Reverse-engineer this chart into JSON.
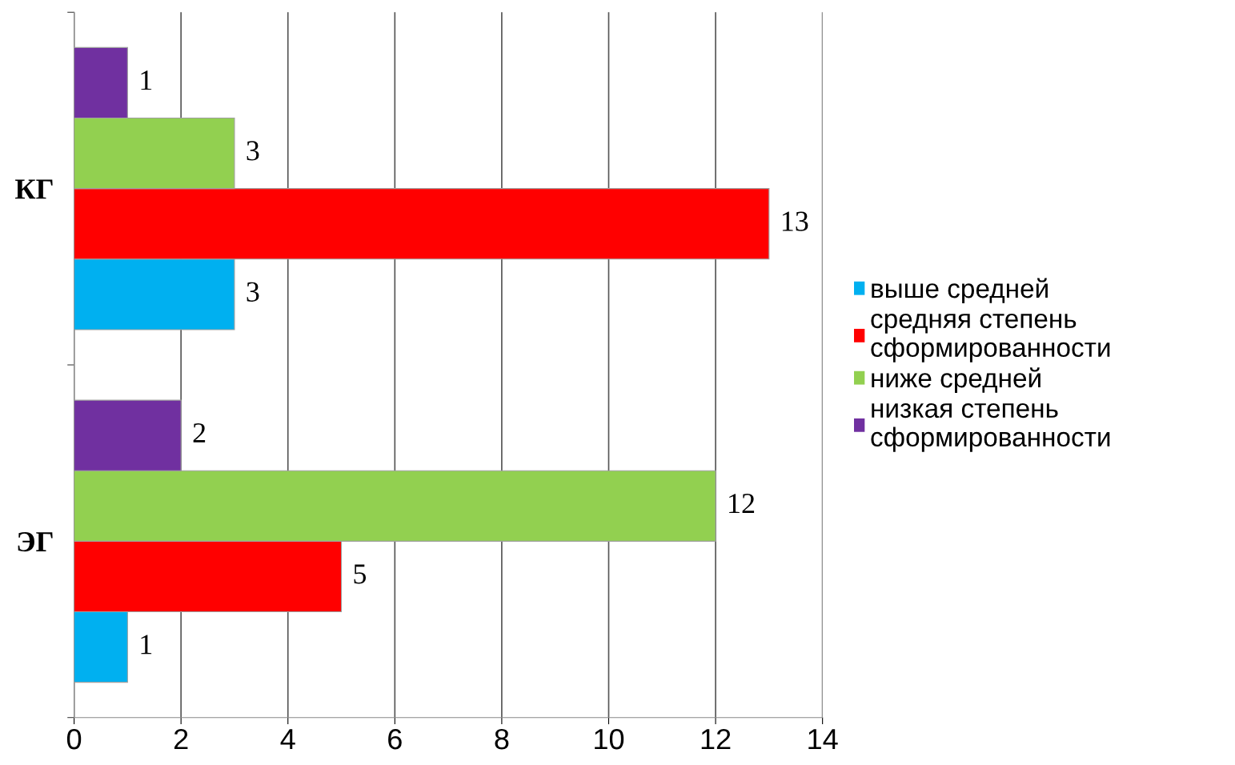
{
  "chart_data": {
    "type": "bar",
    "orientation": "horizontal",
    "categories": [
      "КГ",
      "ЭГ"
    ],
    "series": [
      {
        "name": "выше средней",
        "color": "#00b0f0",
        "values": [
          3,
          1
        ]
      },
      {
        "name": "средняя степень\nсформированности",
        "color": "#ff0000",
        "values": [
          13,
          5
        ]
      },
      {
        "name": "ниже средней",
        "color": "#92d050",
        "values": [
          3,
          12
        ]
      },
      {
        "name": "низкая степень\nсформированности",
        "color": "#7030a0",
        "values": [
          1,
          2
        ]
      }
    ],
    "xlim": [
      0,
      14
    ],
    "xticks": [
      0,
      2,
      4,
      6,
      8,
      10,
      12,
      14
    ],
    "grid": "x",
    "data_labels": true,
    "legend": "right"
  }
}
